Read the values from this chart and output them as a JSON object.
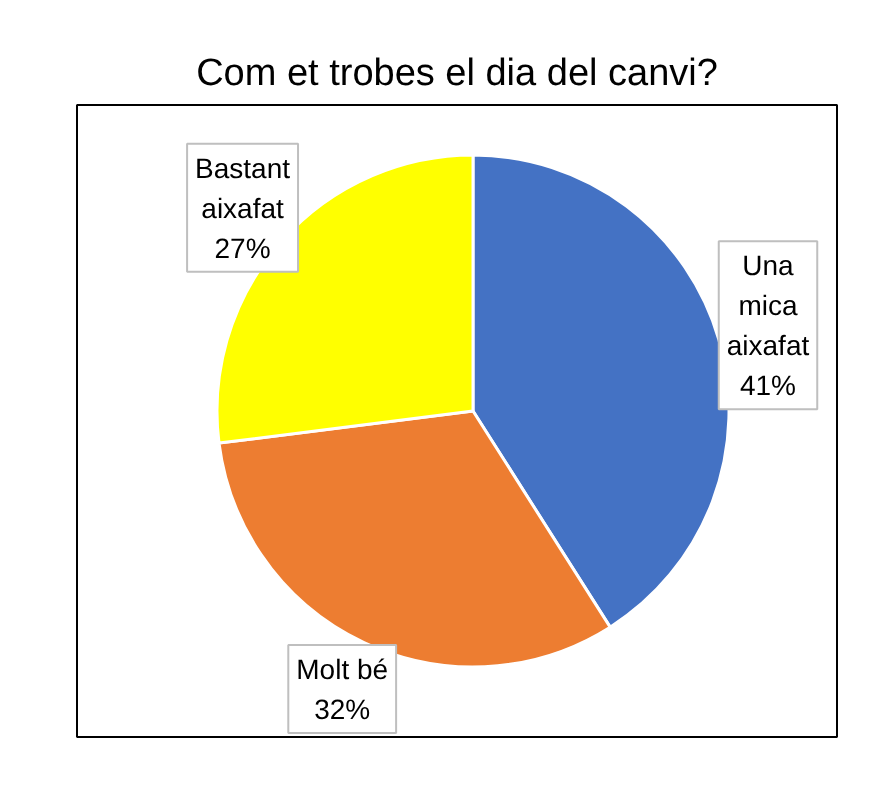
{
  "chart_data": {
    "type": "pie",
    "title": "Com et trobes el dia del canvi?",
    "categories": [
      "Una mica aixafat",
      "Molt bé",
      "Bastant aixafat"
    ],
    "values": [
      41,
      32,
      27
    ],
    "colors": [
      "#4472c4",
      "#ed7d31",
      "#ffff00"
    ],
    "value_labels": [
      "41%",
      "32%",
      "27%"
    ]
  }
}
